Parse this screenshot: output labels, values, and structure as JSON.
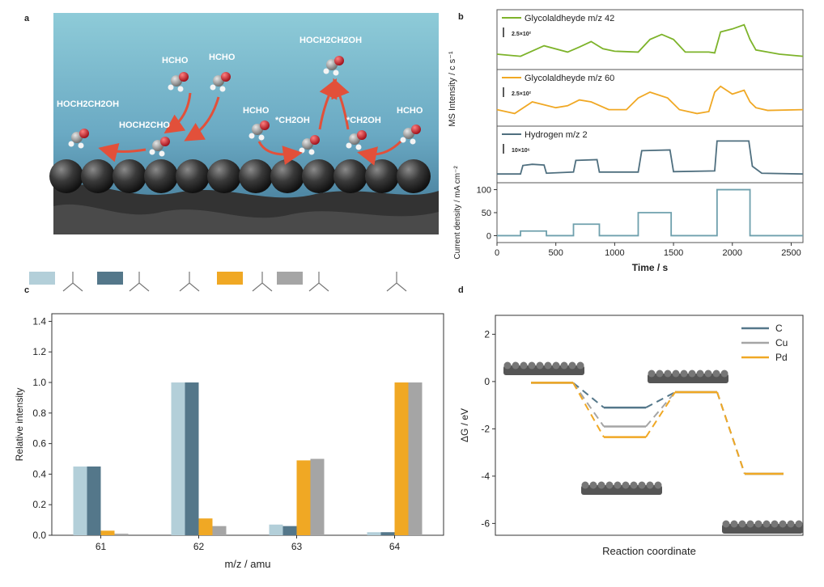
{
  "panels": {
    "a": {
      "letter": "a",
      "labels": [
        "HCHO",
        "HCHO",
        "HOCH2CH2OH",
        "HOCH2CHO",
        "HOCH2CH2OH",
        "HCHO",
        "*CH2OH",
        "*CH2OH",
        "HCHO"
      ],
      "colors": {
        "liquid_top": "#8ecbd8",
        "liquid_bottom": "#4b88a8",
        "arrow": "#e2503a",
        "sphere": "#2a2a2a",
        "support": "#3c3c3c"
      }
    },
    "b": {
      "letter": "b"
    },
    "c": {
      "letter": "c"
    },
    "d": {
      "letter": "d"
    }
  },
  "chart_data": [
    {
      "panel": "b",
      "type": "line",
      "ylabel": "MS Intensity / c s⁻¹",
      "traces": [
        {
          "name": "Glycolaldheyde m/z 42",
          "color": "#7db32a",
          "scale": "2.5×10²",
          "x": [
            0,
            200,
            400,
            600,
            700,
            800,
            900,
            1000,
            1200,
            1300,
            1400,
            1500,
            1600,
            1800,
            1850,
            1900,
            2000,
            2100,
            2150,
            2200,
            2300,
            2400,
            2600
          ],
          "y": [
            0.25,
            0.2,
            0.45,
            0.3,
            0.42,
            0.55,
            0.38,
            0.32,
            0.3,
            0.6,
            0.72,
            0.6,
            0.3,
            0.3,
            0.28,
            0.78,
            0.85,
            0.95,
            0.6,
            0.35,
            0.3,
            0.25,
            0.2
          ]
        },
        {
          "name": "Glycolaldheyde m/z 60",
          "color": "#f0a824",
          "scale": "2.5×10²",
          "x": [
            0,
            150,
            300,
            500,
            600,
            700,
            800,
            950,
            1100,
            1200,
            1300,
            1450,
            1550,
            1700,
            1800,
            1850,
            1900,
            2000,
            2100,
            2150,
            2200,
            2300,
            2600
          ],
          "y": [
            0.3,
            0.2,
            0.5,
            0.35,
            0.4,
            0.55,
            0.5,
            0.3,
            0.3,
            0.6,
            0.75,
            0.6,
            0.3,
            0.2,
            0.25,
            0.75,
            0.9,
            0.7,
            0.8,
            0.5,
            0.35,
            0.28,
            0.3
          ]
        },
        {
          "name": "Hydrogen m/z 2",
          "color": "#4f6f7f",
          "scale": "10×10⁶",
          "x": [
            0,
            200,
            220,
            300,
            400,
            420,
            650,
            670,
            850,
            870,
            1200,
            1230,
            1470,
            1500,
            1850,
            1870,
            2140,
            2170,
            2250,
            2600
          ],
          "y": [
            0.1,
            0.1,
            0.32,
            0.35,
            0.33,
            0.12,
            0.15,
            0.45,
            0.47,
            0.15,
            0.15,
            0.7,
            0.72,
            0.16,
            0.18,
            0.95,
            0.95,
            0.3,
            0.12,
            0.1
          ]
        }
      ]
    },
    {
      "panel": "b-bottom",
      "type": "line",
      "xlabel": "Time / s",
      "ylabel": "Current density / mA cm⁻²",
      "xlim": [
        0,
        2600
      ],
      "ylim": [
        -15,
        115
      ],
      "xticks": [
        0,
        500,
        1000,
        1500,
        2000,
        2500
      ],
      "yticks": [
        0,
        50,
        100
      ],
      "color": "#6fa0ad",
      "x": [
        0,
        200,
        200,
        420,
        420,
        650,
        650,
        870,
        870,
        1200,
        1200,
        1480,
        1480,
        1870,
        1870,
        2150,
        2150,
        2600
      ],
      "y": [
        0,
        0,
        10,
        10,
        0,
        0,
        25,
        25,
        0,
        0,
        50,
        50,
        0,
        0,
        100,
        100,
        0,
        0
      ]
    },
    {
      "panel": "c",
      "type": "bar",
      "xlabel": "m/z / amu",
      "ylabel": "Relative intensity",
      "categories": [
        "61",
        "62",
        "63",
        "64"
      ],
      "ylim": [
        0,
        1.45
      ],
      "yticks": [
        0.0,
        0.2,
        0.4,
        0.6,
        0.8,
        1.0,
        1.2,
        1.4
      ],
      "series": [
        {
          "color": "#b3cfd9",
          "values": [
            0.45,
            1.0,
            0.07,
            0.02
          ]
        },
        {
          "color": "#54778a",
          "values": [
            0.45,
            1.0,
            0.06,
            0.02
          ]
        },
        {
          "color": "#f0a824",
          "values": [
            0.03,
            0.11,
            0.49,
            1.0
          ]
        },
        {
          "color": "#a5a5a5",
          "values": [
            0.01,
            0.06,
            0.5,
            1.0
          ]
        }
      ]
    },
    {
      "panel": "d",
      "type": "line",
      "xlabel": "Reaction coordinate",
      "ylabel": "ΔG / eV",
      "ylim": [
        -6.5,
        2.8
      ],
      "yticks": [
        2,
        0,
        -2,
        -4,
        -6
      ],
      "series": [
        {
          "name": "C",
          "color": "#54778a",
          "levels": [
            -0.05,
            -1.1,
            -0.45,
            -3.9
          ]
        },
        {
          "name": "Cu",
          "color": "#a5a5a5",
          "levels": [
            -0.05,
            -1.9,
            -0.45,
            -3.9
          ]
        },
        {
          "name": "Pd",
          "color": "#f0a824",
          "levels": [
            -0.05,
            -2.35,
            -0.45,
            -3.9
          ]
        }
      ]
    }
  ]
}
